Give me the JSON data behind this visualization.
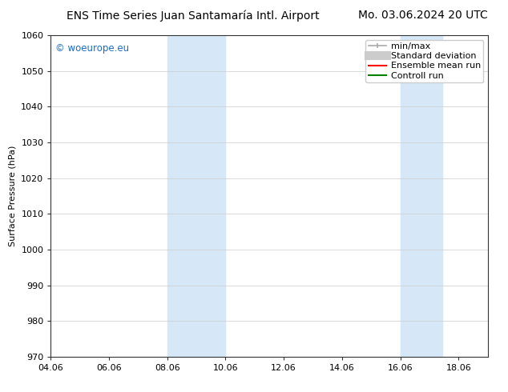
{
  "title_left": "ENS Time Series Juan Santamaría Intl. Airport",
  "title_right": "Mo. 03.06.2024 20 UTC",
  "ylabel": "Surface Pressure (hPa)",
  "xlabel": "",
  "ylim": [
    970,
    1060
  ],
  "yticks": [
    970,
    980,
    990,
    1000,
    1010,
    1020,
    1030,
    1040,
    1050,
    1060
  ],
  "xlim_start": 4.06,
  "xlim_end": 19.06,
  "xtick_labels": [
    "04.06",
    "06.06",
    "08.06",
    "10.06",
    "12.06",
    "14.06",
    "16.06",
    "18.06"
  ],
  "xtick_positions": [
    4.06,
    6.06,
    8.06,
    10.06,
    12.06,
    14.06,
    16.06,
    18.06
  ],
  "shaded_bands": [
    {
      "xstart": 8.06,
      "xend": 10.06
    },
    {
      "xstart": 16.06,
      "xend": 17.5
    }
  ],
  "shaded_color": "#d6e8f7",
  "watermark_text": "© woeurope.eu",
  "watermark_color": "#1a6bcc",
  "legend_entries": [
    {
      "label": "min/max",
      "color": "#aaaaaa",
      "lw": 1.2,
      "style": "solid"
    },
    {
      "label": "Standard deviation",
      "color": "#cccccc",
      "lw": 8,
      "style": "solid"
    },
    {
      "label": "Ensemble mean run",
      "color": "red",
      "lw": 1.5,
      "style": "solid"
    },
    {
      "label": "Controll run",
      "color": "green",
      "lw": 1.5,
      "style": "solid"
    }
  ],
  "bg_color": "#ffffff",
  "grid_color": "#cccccc",
  "title_fontsize": 10,
  "tick_fontsize": 8,
  "legend_fontsize": 8
}
